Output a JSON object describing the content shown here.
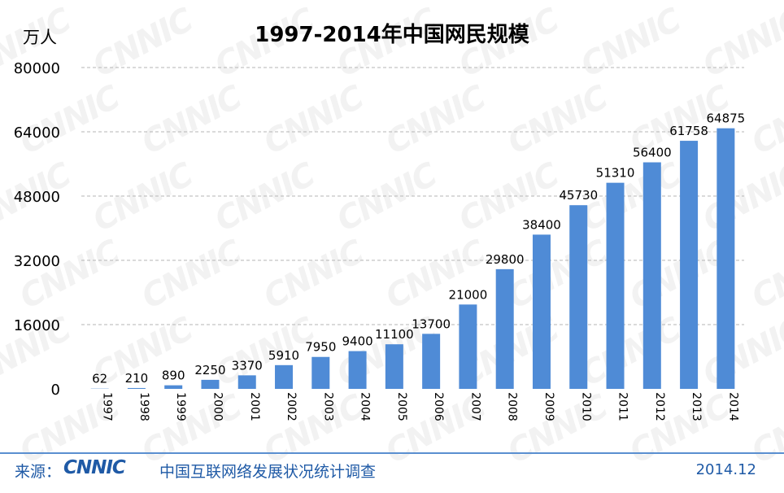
{
  "chart_data": {
    "type": "bar",
    "title": "1997-2014年中国网民规模",
    "ylabel": "万人",
    "ylim": [
      0,
      80000
    ],
    "yticks": [
      0,
      16000,
      32000,
      48000,
      64000,
      80000
    ],
    "grid": "horizontal-dashed",
    "bar_color": "#4f8bd6",
    "categories": [
      "1997",
      "1998",
      "1999",
      "2000",
      "2001",
      "2002",
      "2003",
      "2004",
      "2005",
      "2006",
      "2007",
      "2008",
      "2009",
      "2010",
      "2011",
      "2012",
      "2013",
      "2014"
    ],
    "values": [
      62,
      210,
      890,
      2250,
      3370,
      5910,
      7950,
      9400,
      11100,
      13700,
      21000,
      29800,
      38400,
      45730,
      51310,
      56400,
      61758,
      64875
    ],
    "data_labels": [
      "62",
      "210",
      "890",
      "2250",
      "3370",
      "5910",
      "7950",
      "9400",
      "11100",
      "13700",
      "21000",
      "29800",
      "38400",
      "45730",
      "51310",
      "56400",
      "61758",
      "64875"
    ]
  },
  "footer": {
    "source_label": "来源：",
    "logo_text": "CNNIC",
    "org": "中国互联网络发展状况统计调查",
    "date": "2014.12"
  },
  "watermark": "CNNIC"
}
